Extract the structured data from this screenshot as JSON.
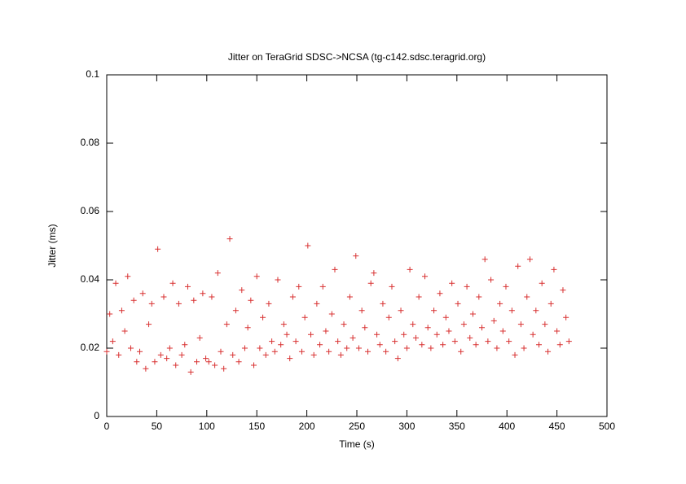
{
  "chart_data": {
    "type": "scatter",
    "title": "Jitter on TeraGrid SDSC->NCSA (tg-c142.sdsc.teragrid.org)",
    "x_label": "Time (s)",
    "y_label": "Jitter (ms)",
    "marker": "+",
    "color": "#d83030",
    "xlim": [
      0,
      500
    ],
    "xticks": [
      0,
      50,
      100,
      150,
      200,
      250,
      300,
      350,
      400,
      450,
      500
    ],
    "ylim": [
      0,
      0.1
    ],
    "yticks": [
      0,
      0.02,
      0.04,
      0.06,
      0.08,
      0.1
    ],
    "grid": false,
    "x": [
      0,
      3,
      6,
      9,
      12,
      15,
      18,
      21,
      24,
      27,
      30,
      33,
      36,
      39,
      42,
      45,
      48,
      51,
      54,
      57,
      60,
      63,
      66,
      69,
      72,
      75,
      78,
      81,
      84,
      87,
      90,
      93,
      96,
      99,
      102,
      105,
      108,
      111,
      114,
      117,
      120,
      123,
      126,
      129,
      132,
      135,
      138,
      141,
      144,
      147,
      150,
      153,
      156,
      159,
      162,
      165,
      168,
      171,
      174,
      177,
      180,
      183,
      186,
      189,
      192,
      195,
      198,
      201,
      204,
      207,
      210,
      213,
      216,
      219,
      222,
      225,
      228,
      231,
      234,
      237,
      240,
      243,
      246,
      249,
      252,
      255,
      258,
      261,
      264,
      267,
      270,
      273,
      276,
      279,
      282,
      285,
      288,
      291,
      294,
      297,
      300,
      303,
      306,
      309,
      312,
      315,
      318,
      321,
      324,
      327,
      330,
      333,
      336,
      339,
      342,
      345,
      348,
      351,
      354,
      357,
      360,
      363,
      366,
      369,
      372,
      375,
      378,
      381,
      384,
      387,
      390,
      393,
      396,
      399,
      402,
      405,
      408,
      411,
      414,
      417,
      420,
      423,
      426,
      429,
      432,
      435,
      438,
      441,
      444,
      447,
      450,
      453,
      456,
      459,
      462
    ],
    "values": [
      0.019,
      0.03,
      0.022,
      0.039,
      0.018,
      0.031,
      0.025,
      0.041,
      0.02,
      0.034,
      0.016,
      0.019,
      0.036,
      0.014,
      0.027,
      0.033,
      0.016,
      0.049,
      0.018,
      0.035,
      0.017,
      0.02,
      0.039,
      0.015,
      0.033,
      0.018,
      0.021,
      0.038,
      0.013,
      0.034,
      0.016,
      0.023,
      0.036,
      0.017,
      0.016,
      0.035,
      0.015,
      0.042,
      0.019,
      0.014,
      0.027,
      0.052,
      0.018,
      0.031,
      0.016,
      0.037,
      0.02,
      0.026,
      0.034,
      0.015,
      0.041,
      0.02,
      0.029,
      0.018,
      0.033,
      0.022,
      0.019,
      0.04,
      0.021,
      0.027,
      0.024,
      0.017,
      0.035,
      0.022,
      0.038,
      0.019,
      0.029,
      0.05,
      0.024,
      0.018,
      0.033,
      0.021,
      0.038,
      0.025,
      0.019,
      0.03,
      0.043,
      0.022,
      0.018,
      0.027,
      0.02,
      0.035,
      0.023,
      0.047,
      0.02,
      0.031,
      0.026,
      0.019,
      0.039,
      0.042,
      0.024,
      0.021,
      0.033,
      0.019,
      0.029,
      0.038,
      0.022,
      0.017,
      0.031,
      0.024,
      0.02,
      0.043,
      0.027,
      0.023,
      0.035,
      0.021,
      0.041,
      0.026,
      0.02,
      0.031,
      0.024,
      0.036,
      0.021,
      0.029,
      0.025,
      0.039,
      0.022,
      0.033,
      0.019,
      0.027,
      0.038,
      0.023,
      0.03,
      0.021,
      0.035,
      0.026,
      0.046,
      0.022,
      0.04,
      0.028,
      0.02,
      0.033,
      0.025,
      0.038,
      0.022,
      0.031,
      0.018,
      0.044,
      0.027,
      0.02,
      0.035,
      0.046,
      0.024,
      0.031,
      0.021,
      0.039,
      0.027,
      0.019,
      0.033,
      0.043,
      0.025,
      0.021,
      0.037,
      0.029,
      0.022
    ]
  }
}
